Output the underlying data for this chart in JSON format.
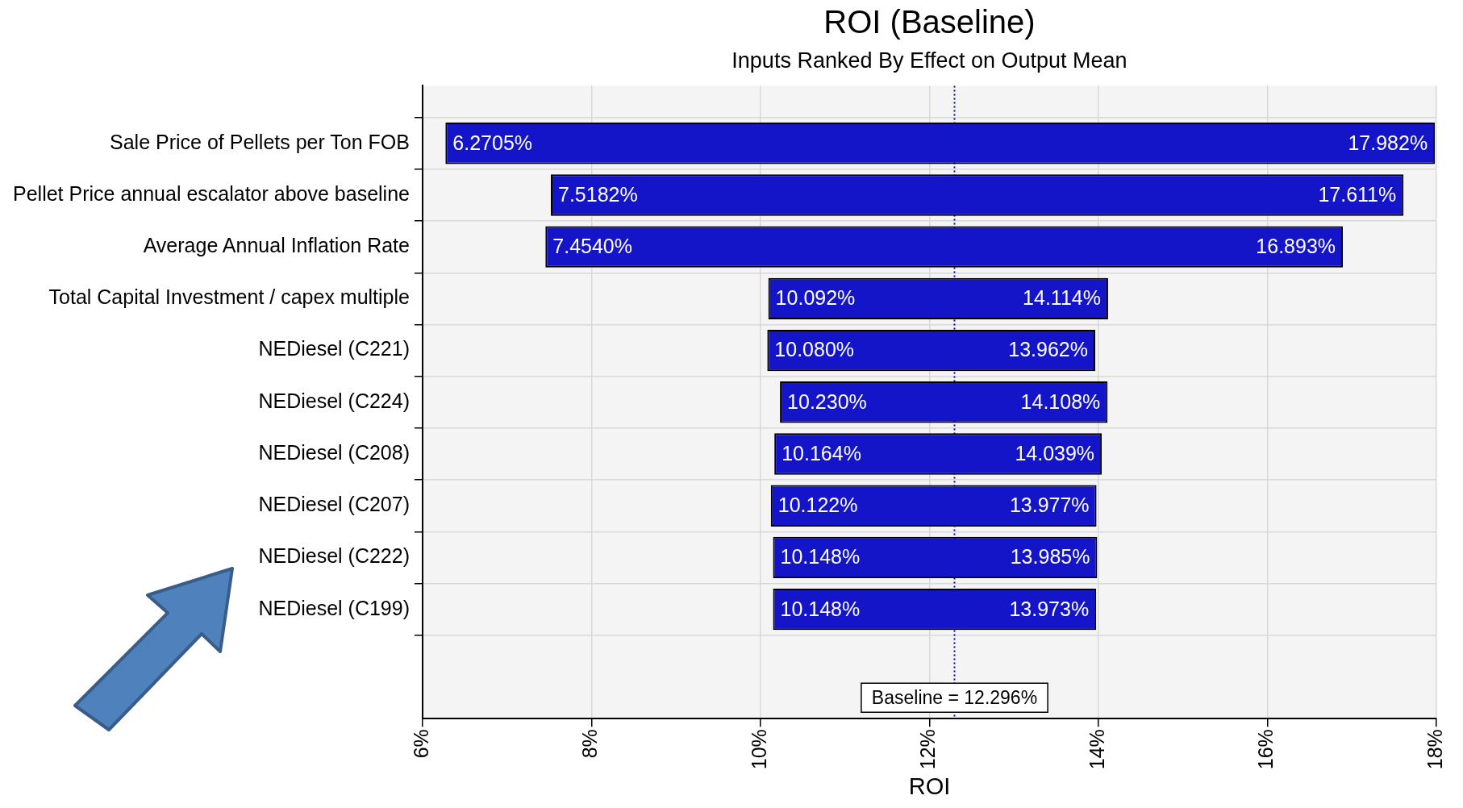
{
  "chart_data": {
    "type": "bar",
    "orientation": "horizontal",
    "title": "ROI (Baseline)",
    "subtitle": "Inputs Ranked By Effect on Output Mean",
    "xlabel": "ROI",
    "categories": [
      "Sale Price of Pellets per Ton FOB",
      "Pellet Price annual escalator above baseline",
      "Average Annual Inflation Rate",
      "Total Capital Investment / capex multiple",
      "NEDiesel (C221)",
      "NEDiesel (C224)",
      "NEDiesel (C208)",
      "NEDiesel (C207)",
      "NEDiesel (C222)",
      "NEDiesel (C199)"
    ],
    "base": [
      6.2705,
      7.5182,
      7.454,
      10.092,
      10.08,
      10.23,
      10.164,
      10.122,
      10.148,
      10.148
    ],
    "values": [
      11.7115,
      10.0928,
      9.439,
      4.022,
      3.882,
      3.878,
      3.875,
      3.855,
      3.837,
      3.825
    ],
    "color": "#1414c8",
    "xlim": [
      6,
      18
    ],
    "xticks": [
      {
        "value": 6,
        "label": "6%"
      },
      {
        "value": 8,
        "label": "8%"
      },
      {
        "value": 10,
        "label": "10%"
      },
      {
        "value": 12,
        "label": "12%"
      },
      {
        "value": 14,
        "label": "14%"
      },
      {
        "value": 16,
        "label": "16%"
      },
      {
        "value": 18,
        "label": "18%"
      }
    ],
    "grid": true,
    "legend": false,
    "ref_lines": [
      {
        "axis": "x",
        "value": 12.296,
        "label": "Baseline = 12.296%",
        "color": "#0000cc",
        "line_style": "dotted"
      }
    ],
    "annotations": [
      {
        "text": "6.2705%",
        "x": 6.2705,
        "y": "Sale Price of Pellets per Ton FOB"
      },
      {
        "text": "17.982%",
        "x": 17.982,
        "y": "Sale Price of Pellets per Ton FOB"
      },
      {
        "text": "7.5182%",
        "x": 7.5182,
        "y": "Pellet Price annual escalator above baseline"
      },
      {
        "text": "17.611%",
        "x": 17.611,
        "y": "Pellet Price annual escalator above baseline"
      },
      {
        "text": "7.4540%",
        "x": 7.454,
        "y": "Average Annual Inflation Rate"
      },
      {
        "text": "16.893%",
        "x": 16.893,
        "y": "Average Annual Inflation Rate"
      },
      {
        "text": "10.092%",
        "x": 10.092,
        "y": "Total Capital Investment / capex multiple"
      },
      {
        "text": "14.114%",
        "x": 14.114,
        "y": "Total Capital Investment / capex multiple"
      },
      {
        "text": "10.080%",
        "x": 10.08,
        "y": "NEDiesel (C221)"
      },
      {
        "text": "13.962%",
        "x": 13.962,
        "y": "NEDiesel (C221)"
      },
      {
        "text": "10.230%",
        "x": 10.23,
        "y": "NEDiesel (C224)"
      },
      {
        "text": "14.108%",
        "x": 14.108,
        "y": "NEDiesel (C224)"
      },
      {
        "text": "10.164%",
        "x": 10.164,
        "y": "NEDiesel (C208)"
      },
      {
        "text": "14.039%",
        "x": 14.039,
        "y": "NEDiesel (C208)"
      },
      {
        "text": "10.122%",
        "x": 10.122,
        "y": "NEDiesel (C207)"
      },
      {
        "text": "13.977%",
        "x": 13.977,
        "y": "NEDiesel (C207)"
      },
      {
        "text": "10.148%",
        "x": 10.148,
        "y": "NEDiesel (C222)"
      },
      {
        "text": "13.985%",
        "x": 13.985,
        "y": "NEDiesel (C222)"
      },
      {
        "text": "10.148%",
        "x": 10.148,
        "y": "NEDiesel (C199)"
      },
      {
        "text": "13.973%",
        "x": 13.973,
        "y": "NEDiesel (C199)"
      }
    ]
  }
}
